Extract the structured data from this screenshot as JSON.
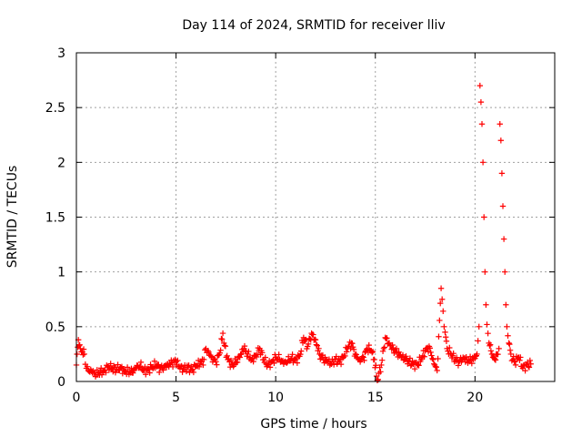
{
  "chart_data": {
    "type": "scatter",
    "title": "Day 114 of 2024, SRMTID for receiver lliv",
    "xlabel": "GPS time / hours",
    "ylabel": "SRMTID / TECUs",
    "xlim": [
      0,
      24
    ],
    "ylim": [
      0,
      3
    ],
    "xticks": [
      0,
      5,
      10,
      15,
      20
    ],
    "xtick_labels": [
      "0",
      "5",
      "10",
      "15",
      "20"
    ],
    "yticks": [
      0,
      0.5,
      1,
      1.5,
      2,
      2.5,
      3
    ],
    "ytick_labels": [
      "0",
      "0.5",
      "1",
      "1.5",
      "2",
      "2.5",
      "3"
    ],
    "grid": true,
    "marker": "plus",
    "color": "#ff0000",
    "series": [
      {
        "name": "SRMTID",
        "x": [
          0.0,
          0.1,
          0.2,
          0.3,
          0.4,
          0.5,
          0.6,
          0.8,
          1.0,
          1.2,
          1.4,
          1.6,
          1.8,
          2.0,
          2.2,
          2.4,
          2.6,
          2.8,
          3.0,
          3.2,
          3.4,
          3.6,
          3.8,
          4.0,
          4.2,
          4.4,
          4.6,
          4.8,
          5.0,
          5.2,
          5.4,
          5.6,
          5.8,
          6.0,
          6.2,
          6.4,
          6.5,
          6.6,
          6.8,
          7.0,
          7.2,
          7.35,
          7.4,
          7.6,
          7.8,
          8.0,
          8.2,
          8.4,
          8.6,
          8.8,
          9.0,
          9.2,
          9.4,
          9.6,
          9.8,
          10.0,
          10.2,
          10.4,
          10.6,
          10.8,
          11.0,
          11.2,
          11.4,
          11.6,
          11.8,
          12.0,
          12.2,
          12.4,
          12.6,
          12.8,
          13.0,
          13.2,
          13.4,
          13.6,
          13.8,
          14.0,
          14.2,
          14.4,
          14.6,
          14.8,
          14.95,
          15.1,
          15.3,
          15.5,
          15.7,
          15.9,
          16.1,
          16.3,
          16.5,
          16.7,
          16.9,
          17.1,
          17.3,
          17.5,
          17.7,
          17.9,
          18.1,
          18.3,
          18.35,
          18.45,
          18.5,
          18.6,
          18.8,
          19.0,
          19.2,
          19.4,
          19.6,
          19.8,
          20.0,
          20.1,
          20.2,
          20.25,
          20.3,
          20.35,
          20.4,
          20.45,
          20.5,
          20.55,
          20.6,
          20.7,
          20.8,
          20.9,
          21.0,
          21.1,
          21.2,
          21.25,
          21.3,
          21.35,
          21.4,
          21.45,
          21.5,
          21.55,
          21.6,
          21.7,
          21.8,
          21.9,
          22.0,
          22.2,
          22.4,
          22.6,
          22.8
        ],
        "y": [
          0.15,
          0.38,
          0.3,
          0.27,
          0.25,
          0.12,
          0.1,
          0.08,
          0.06,
          0.09,
          0.1,
          0.14,
          0.12,
          0.11,
          0.13,
          0.1,
          0.09,
          0.08,
          0.12,
          0.14,
          0.1,
          0.11,
          0.13,
          0.15,
          0.12,
          0.14,
          0.16,
          0.17,
          0.18,
          0.12,
          0.11,
          0.13,
          0.1,
          0.14,
          0.16,
          0.2,
          0.3,
          0.28,
          0.22,
          0.18,
          0.26,
          0.44,
          0.35,
          0.2,
          0.15,
          0.17,
          0.22,
          0.3,
          0.25,
          0.2,
          0.24,
          0.3,
          0.2,
          0.15,
          0.18,
          0.22,
          0.2,
          0.16,
          0.18,
          0.21,
          0.2,
          0.23,
          0.4,
          0.32,
          0.44,
          0.38,
          0.25,
          0.2,
          0.18,
          0.16,
          0.2,
          0.18,
          0.22,
          0.3,
          0.35,
          0.25,
          0.2,
          0.22,
          0.3,
          0.28,
          0.2,
          0.01,
          0.15,
          0.4,
          0.35,
          0.3,
          0.26,
          0.22,
          0.2,
          0.18,
          0.16,
          0.15,
          0.2,
          0.28,
          0.32,
          0.2,
          0.1,
          0.85,
          0.75,
          0.5,
          0.45,
          0.3,
          0.25,
          0.2,
          0.18,
          0.22,
          0.2,
          0.19,
          0.21,
          0.25,
          0.5,
          2.7,
          2.55,
          2.35,
          2.0,
          1.5,
          1.0,
          0.7,
          0.52,
          0.35,
          0.28,
          0.22,
          0.2,
          0.25,
          0.3,
          2.35,
          2.2,
          1.9,
          1.6,
          1.3,
          1.0,
          0.7,
          0.5,
          0.35,
          0.25,
          0.2,
          0.18,
          0.22,
          0.12,
          0.15,
          0.16
        ]
      }
    ]
  }
}
